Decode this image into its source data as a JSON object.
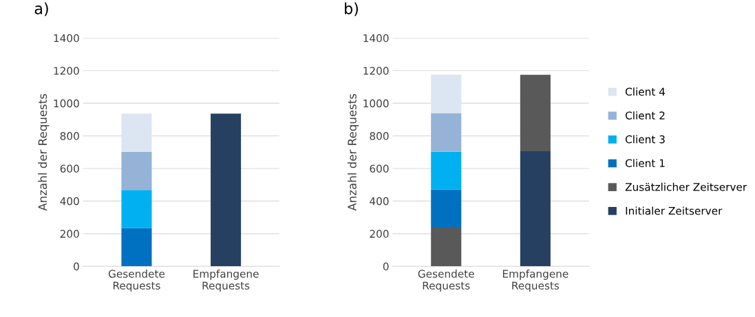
{
  "chart_data": [
    {
      "type": "bar",
      "title": "a)",
      "ylabel": "Anzahl der Requests",
      "stacked": true,
      "categories": [
        "Gesendete\nRequests",
        "Empfangene\nRequests"
      ],
      "ylim": [
        0,
        1400
      ],
      "yticks": [
        0,
        200,
        400,
        600,
        800,
        1000,
        1200,
        1400
      ],
      "grid": "y",
      "legend": false,
      "series": [
        {
          "color": "#264061",
          "values": [
            null,
            936
          ]
        },
        {
          "color": "#0070c0",
          "values": [
            234,
            null
          ]
        },
        {
          "color": "#00b0f0",
          "values": [
            234,
            null
          ]
        },
        {
          "color": "#95b3d7",
          "values": [
            234,
            null
          ]
        },
        {
          "color": "#dce6f2",
          "values": [
            234,
            null
          ]
        }
      ]
    },
    {
      "type": "bar",
      "title": "b)",
      "ylabel": "Anzahl der Requests",
      "stacked": true,
      "categories": [
        "Gesendete\nRequests",
        "Empfangene\nRequests"
      ],
      "ylim": [
        0,
        1400
      ],
      "yticks": [
        0,
        200,
        400,
        600,
        800,
        1000,
        1200,
        1400
      ],
      "grid": "y",
      "legend": "right",
      "series": [
        {
          "name": "Initialer Zeitserver",
          "color": "#264061",
          "values": [
            null,
            705
          ]
        },
        {
          "name": "Zusätzlicher Zeitserver",
          "color": "#595959",
          "values": [
            237,
            470
          ]
        },
        {
          "name": "Client 1",
          "color": "#0070c0",
          "values": [
            233,
            null
          ]
        },
        {
          "name": "Client 3",
          "color": "#00b0f0",
          "values": [
            232,
            null
          ]
        },
        {
          "name": "Client 2",
          "color": "#95b3d7",
          "values": [
            237,
            null
          ]
        },
        {
          "name": "Client 4",
          "color": "#dce6f2",
          "values": [
            237,
            null
          ]
        }
      ]
    }
  ]
}
